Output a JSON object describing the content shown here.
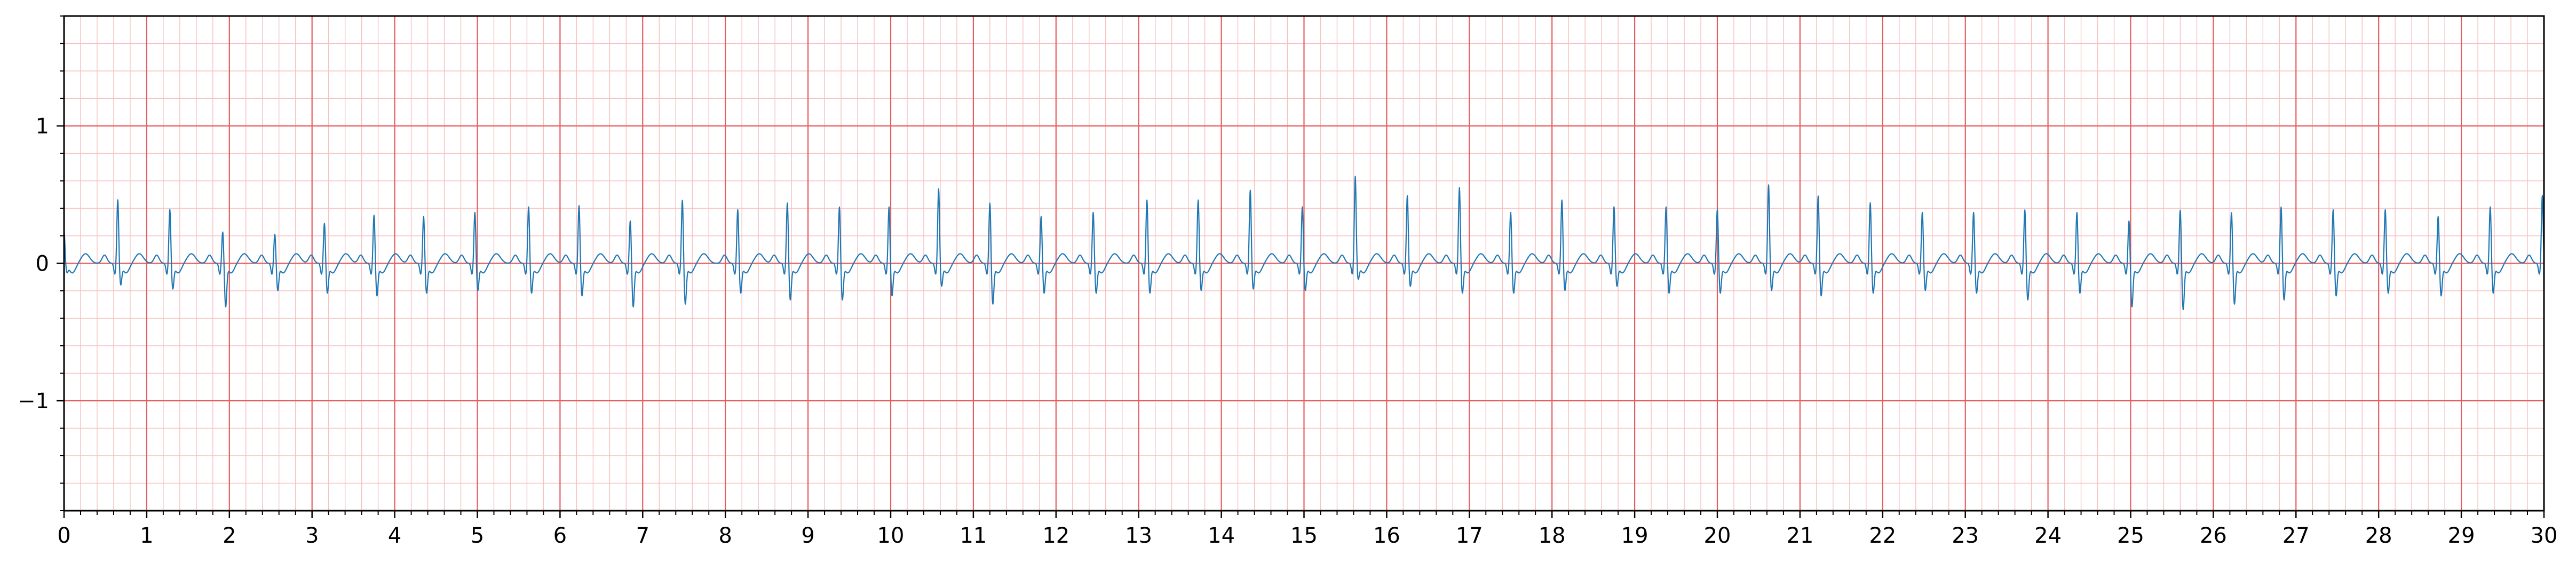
{
  "chart_data": {
    "type": "line",
    "title": "",
    "xlabel": "",
    "ylabel": "",
    "xlim": [
      0,
      30
    ],
    "ylim": [
      -1.8,
      1.8
    ],
    "x_ticks": [
      0,
      1,
      2,
      3,
      4,
      5,
      6,
      7,
      8,
      9,
      10,
      11,
      12,
      13,
      14,
      15,
      16,
      17,
      18,
      19,
      20,
      21,
      22,
      23,
      24,
      25,
      26,
      27,
      28,
      29,
      30
    ],
    "x_tick_labels": [
      "0",
      "1",
      "2",
      "3",
      "4",
      "5",
      "6",
      "7",
      "8",
      "9",
      "10",
      "11",
      "12",
      "13",
      "14",
      "15",
      "16",
      "17",
      "18",
      "19",
      "20",
      "21",
      "22",
      "23",
      "24",
      "25",
      "26",
      "27",
      "28",
      "29",
      "30"
    ],
    "y_ticks": [
      -1,
      0,
      1
    ],
    "y_tick_labels": [
      "−1",
      "0",
      "1"
    ],
    "grid": {
      "major": true,
      "minor": true,
      "x_major_step": 1,
      "x_minor_step": 0.2,
      "y_major_step": 1,
      "y_minor_step": 0.2
    },
    "colors": {
      "line": "#1f77b4",
      "major_grid": "#e85c5c",
      "minor_grid": "#f7c0c0",
      "axes": "#000000"
    },
    "series": [
      {
        "name": "",
        "beat_times": [
          0.0,
          0.65,
          1.28,
          1.92,
          2.55,
          3.15,
          3.75,
          4.35,
          4.97,
          5.62,
          6.23,
          6.85,
          7.48,
          8.15,
          8.75,
          9.38,
          9.98,
          10.58,
          11.2,
          11.82,
          12.45,
          13.1,
          13.72,
          14.35,
          14.98,
          15.62,
          16.25,
          16.88,
          17.5,
          18.12,
          18.75,
          19.38,
          20.0,
          20.62,
          21.22,
          21.85,
          22.48,
          23.1,
          23.72,
          24.35,
          24.98,
          25.6,
          26.22,
          26.82,
          27.45,
          28.08,
          28.72,
          29.35,
          29.98
        ],
        "r_peak_values": [
          0.24,
          0.47,
          0.4,
          0.24,
          0.22,
          0.3,
          0.36,
          0.35,
          0.38,
          0.42,
          0.43,
          0.32,
          0.47,
          0.4,
          0.45,
          0.42,
          0.42,
          0.55,
          0.45,
          0.35,
          0.38,
          0.47,
          0.47,
          0.54,
          0.42,
          0.64,
          0.5,
          0.56,
          0.38,
          0.47,
          0.42,
          0.42,
          0.4,
          0.58,
          0.5,
          0.45,
          0.38,
          0.38,
          0.4,
          0.38,
          0.32,
          0.4,
          0.38,
          0.42,
          0.4,
          0.4,
          0.35,
          0.42,
          0.5
        ],
        "s_trough_values": [
          -0.05,
          -0.14,
          -0.17,
          -0.3,
          -0.18,
          -0.2,
          -0.22,
          -0.2,
          -0.18,
          -0.2,
          -0.22,
          -0.3,
          -0.28,
          -0.2,
          -0.25,
          -0.25,
          -0.22,
          -0.15,
          -0.28,
          -0.2,
          -0.2,
          -0.2,
          -0.18,
          -0.17,
          -0.18,
          -0.1,
          -0.15,
          -0.2,
          -0.2,
          -0.18,
          -0.15,
          -0.2,
          -0.2,
          -0.18,
          -0.22,
          -0.2,
          -0.18,
          -0.2,
          -0.25,
          -0.2,
          -0.3,
          -0.32,
          -0.28,
          -0.25,
          -0.22,
          -0.2,
          -0.22,
          -0.2,
          -0.12
        ]
      }
    ]
  }
}
